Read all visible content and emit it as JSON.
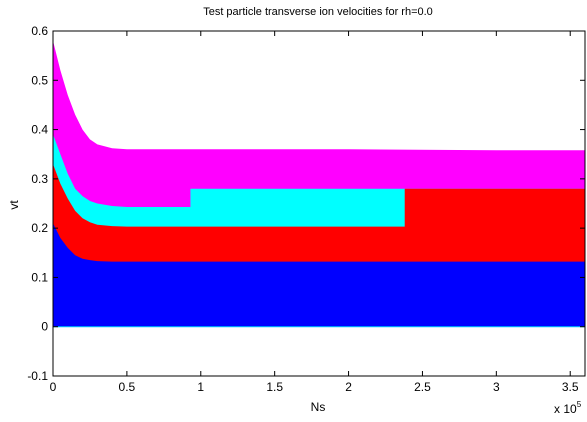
{
  "chart_data": {
    "type": "area",
    "title": "Test particle transverse ion velocities for rh=0.0",
    "xlabel": "Ns",
    "ylabel": "vt",
    "x_exponent_label": "x 10",
    "x_exponent_power": "5",
    "xlim": [
      0,
      3.6
    ],
    "ylim": [
      -0.1,
      0.6
    ],
    "xticks": [
      0,
      0.5,
      1,
      1.5,
      2,
      2.5,
      3,
      3.5
    ],
    "xtick_labels": [
      "0",
      "0.5",
      "1",
      "1.5",
      "2",
      "2.5",
      "3",
      "3.5"
    ],
    "yticks": [
      -0.1,
      0,
      0.1,
      0.2,
      0.3,
      0.4,
      0.5,
      0.6
    ],
    "ytick_labels": [
      "-0.1",
      "0",
      "0.1",
      "0.2",
      "0.3",
      "0.4",
      "0.5",
      "0.6"
    ],
    "grid": false,
    "series": [
      {
        "color": "#ff00ff",
        "x": [
          0,
          0.05,
          0.1,
          0.15,
          0.2,
          0.25,
          0.3,
          0.4,
          0.5,
          1.0,
          2.0,
          3.0,
          3.6
        ],
        "y": [
          0.58,
          0.52,
          0.47,
          0.43,
          0.4,
          0.38,
          0.37,
          0.362,
          0.36,
          0.36,
          0.36,
          0.358,
          0.358
        ]
      },
      {
        "color": "#00ffff",
        "x": [
          0,
          0.05,
          0.1,
          0.15,
          0.2,
          0.25,
          0.3,
          0.4,
          0.5,
          0.93,
          0.93,
          2.38,
          2.38,
          3.6
        ],
        "y": [
          0.39,
          0.35,
          0.31,
          0.28,
          0.265,
          0.255,
          0.25,
          0.245,
          0.243,
          0.243,
          0.28,
          0.28,
          0.28,
          0.28
        ]
      },
      {
        "color": "#ff0000",
        "x": [
          0,
          0.05,
          0.1,
          0.15,
          0.2,
          0.25,
          0.3,
          0.4,
          0.5,
          2.38,
          2.38,
          3.6
        ],
        "y": [
          0.33,
          0.29,
          0.26,
          0.235,
          0.22,
          0.212,
          0.207,
          0.204,
          0.203,
          0.203,
          0.28,
          0.28
        ]
      },
      {
        "color": "#0000ff",
        "x": [
          0,
          0.05,
          0.1,
          0.15,
          0.2,
          0.25,
          0.3,
          0.4,
          0.5,
          1.0,
          2.0,
          3.0,
          3.6
        ],
        "y": [
          0.21,
          0.18,
          0.16,
          0.145,
          0.138,
          0.135,
          0.133,
          0.132,
          0.132,
          0.132,
          0.132,
          0.132,
          0.132
        ]
      }
    ]
  }
}
